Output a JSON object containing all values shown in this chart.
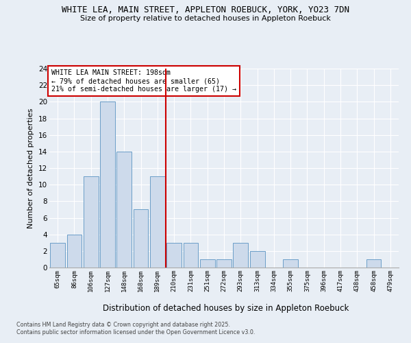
{
  "title1": "WHITE LEA, MAIN STREET, APPLETON ROEBUCK, YORK, YO23 7DN",
  "title2": "Size of property relative to detached houses in Appleton Roebuck",
  "xlabel": "Distribution of detached houses by size in Appleton Roebuck",
  "ylabel": "Number of detached properties",
  "categories": [
    "65sqm",
    "86sqm",
    "106sqm",
    "127sqm",
    "148sqm",
    "168sqm",
    "189sqm",
    "210sqm",
    "231sqm",
    "251sqm",
    "272sqm",
    "293sqm",
    "313sqm",
    "334sqm",
    "355sqm",
    "375sqm",
    "396sqm",
    "417sqm",
    "438sqm",
    "458sqm",
    "479sqm"
  ],
  "values": [
    3,
    4,
    11,
    20,
    14,
    7,
    11,
    3,
    3,
    1,
    1,
    3,
    2,
    0,
    1,
    0,
    0,
    0,
    0,
    1,
    0
  ],
  "bar_color": "#cddaeb",
  "bar_edge_color": "#6b9ec8",
  "vline_x_idx": 6.5,
  "vline_color": "#cc0000",
  "annotation_text": "WHITE LEA MAIN STREET: 198sqm\n← 79% of detached houses are smaller (65)\n21% of semi-detached houses are larger (17) →",
  "annotation_box_color": "#ffffff",
  "annotation_box_edge": "#cc0000",
  "ylim": [
    0,
    24
  ],
  "yticks": [
    0,
    2,
    4,
    6,
    8,
    10,
    12,
    14,
    16,
    18,
    20,
    22,
    24
  ],
  "footer1": "Contains HM Land Registry data © Crown copyright and database right 2025.",
  "footer2": "Contains public sector information licensed under the Open Government Licence v3.0.",
  "bg_color": "#e8eef5",
  "grid_color": "#ffffff"
}
